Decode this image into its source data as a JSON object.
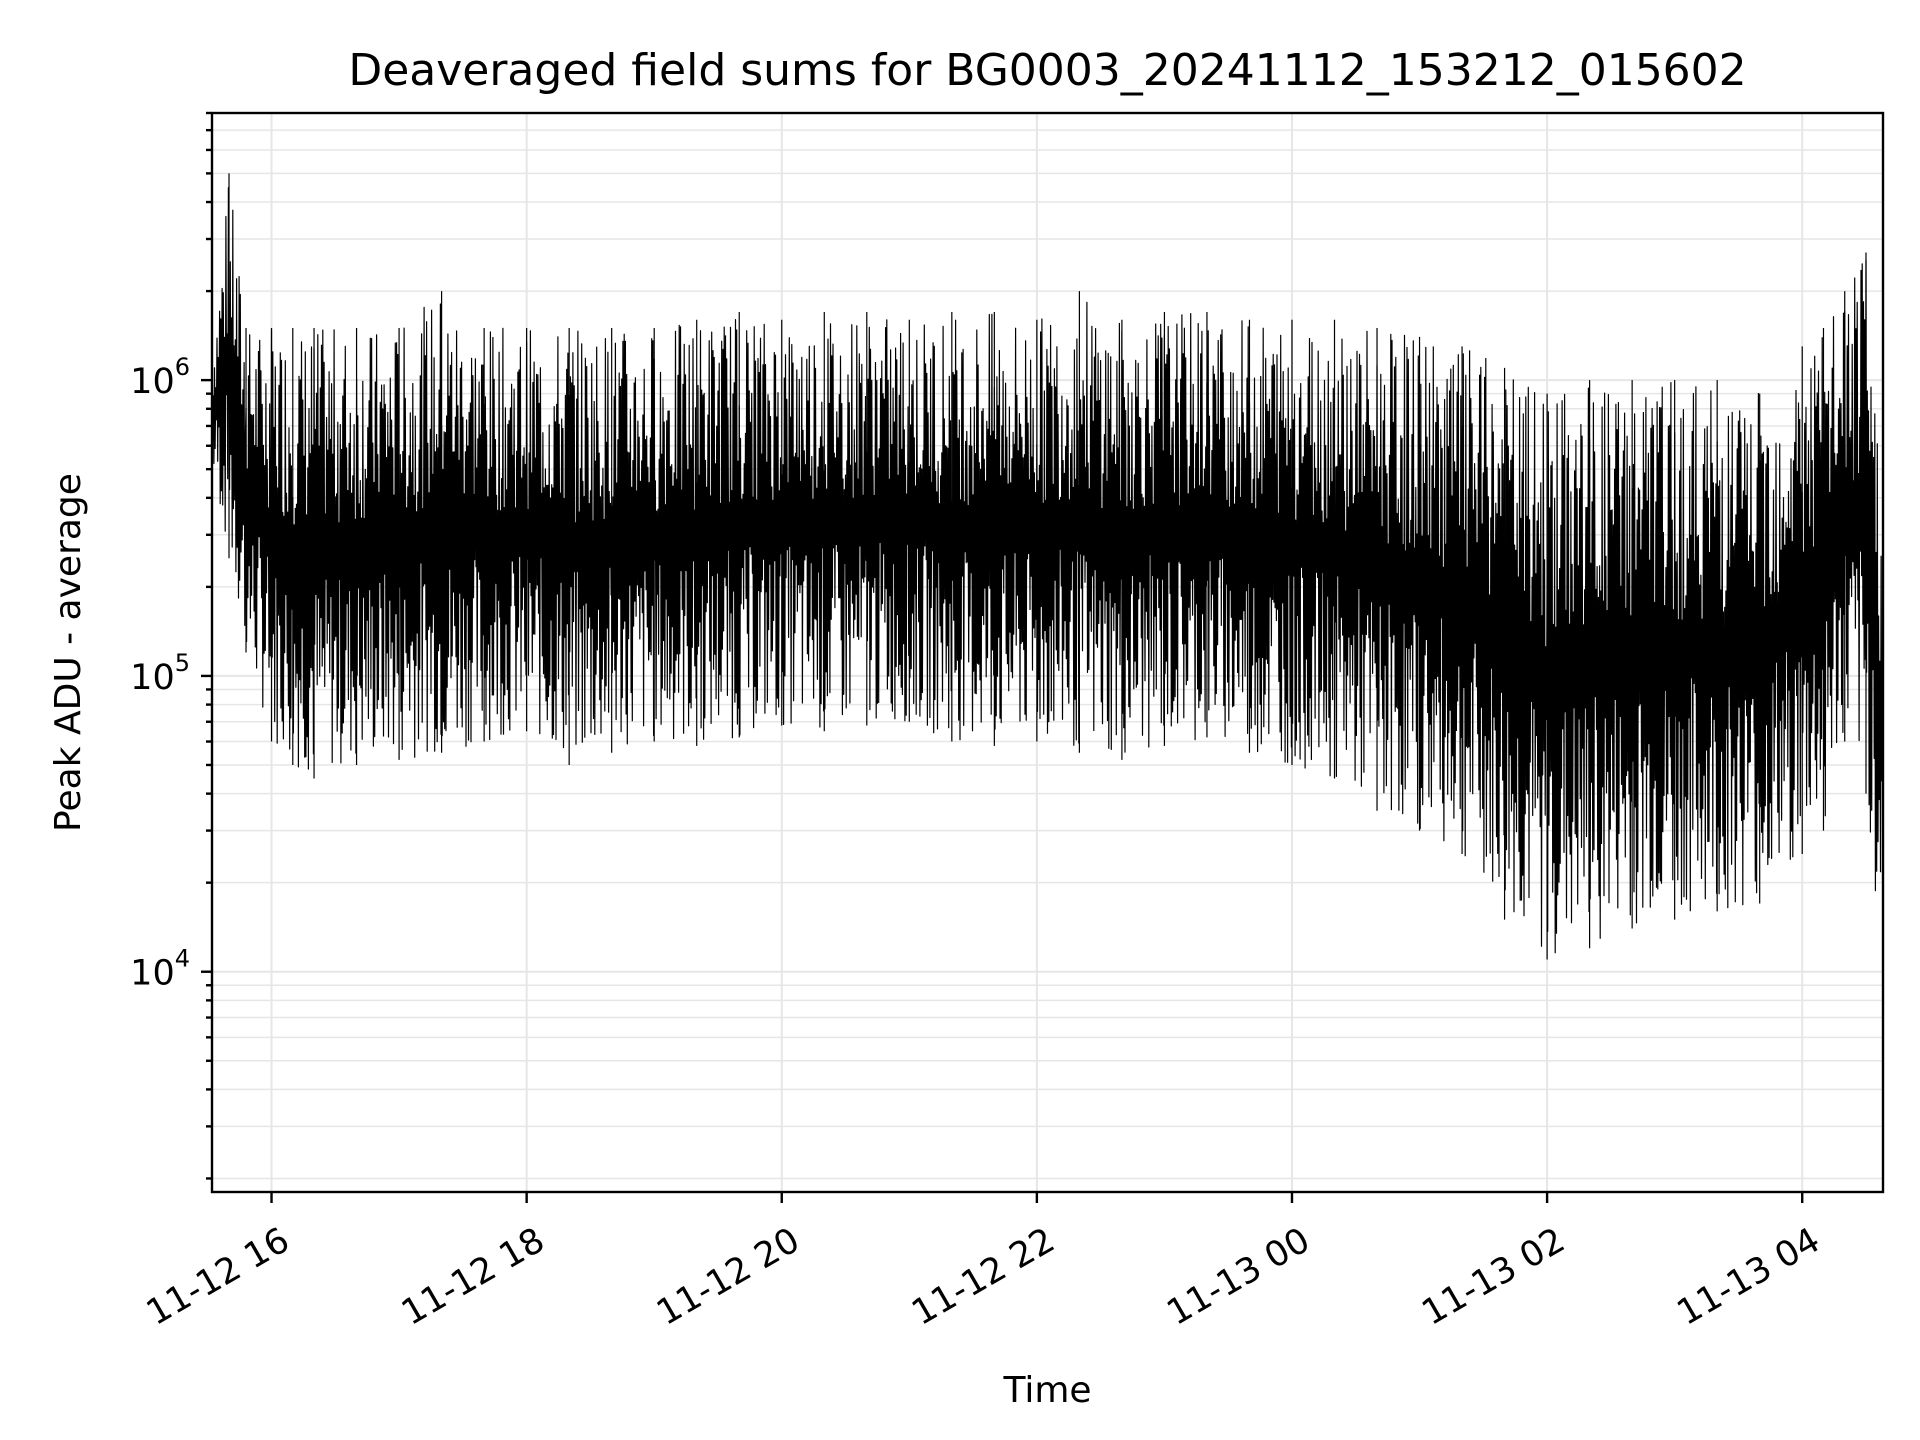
{
  "chart_data": {
    "type": "line",
    "title": "Deaveraged field sums for BG0003_20241112_153212_015602",
    "xlabel": "Time",
    "ylabel": "Peak ADU - average",
    "y_scale": "log",
    "ylim": [
      1800,
      8000000
    ],
    "xlim": [
      "2024-11-12 15:32",
      "2024-11-13 04:38"
    ],
    "grid": true,
    "legend": "none",
    "line_color": "#000000",
    "x_ticks": [
      {
        "value": "2024-11-12 16:00",
        "label": "11-12 16"
      },
      {
        "value": "2024-11-12 18:00",
        "label": "11-12 18"
      },
      {
        "value": "2024-11-12 20:00",
        "label": "11-12 20"
      },
      {
        "value": "2024-11-12 22:00",
        "label": "11-12 22"
      },
      {
        "value": "2024-11-13 00:00",
        "label": "11-13 00"
      },
      {
        "value": "2024-11-13 02:00",
        "label": "11-13 02"
      },
      {
        "value": "2024-11-13 04:00",
        "label": "11-13 04"
      }
    ],
    "y_ticks": [
      {
        "value": 10000,
        "base": "10",
        "exp": "4"
      },
      {
        "value": 100000,
        "base": "10",
        "exp": "5"
      },
      {
        "value": 1000000,
        "base": "10",
        "exp": "6"
      }
    ],
    "series": [
      {
        "x": [
          "2024-11-12 15:32",
          "2024-11-12 15:40",
          "2024-11-12 15:48",
          "2024-11-12 16:00",
          "2024-11-12 16:10",
          "2024-11-12 16:20",
          "2024-11-12 16:40",
          "2024-11-12 17:00",
          "2024-11-12 17:20",
          "2024-11-12 17:40",
          "2024-11-12 18:00",
          "2024-11-12 18:20",
          "2024-11-12 18:40",
          "2024-11-12 19:00",
          "2024-11-12 19:20",
          "2024-11-12 19:40",
          "2024-11-12 20:00",
          "2024-11-12 20:20",
          "2024-11-12 20:40",
          "2024-11-12 21:00",
          "2024-11-12 21:20",
          "2024-11-12 21:40",
          "2024-11-12 22:00",
          "2024-11-12 22:20",
          "2024-11-12 22:40",
          "2024-11-12 23:00",
          "2024-11-12 23:20",
          "2024-11-12 23:40",
          "2024-11-13 00:00",
          "2024-11-13 00:20",
          "2024-11-13 00:40",
          "2024-11-13 01:00",
          "2024-11-13 01:20",
          "2024-11-13 01:40",
          "2024-11-13 02:00",
          "2024-11-13 02:20",
          "2024-11-13 02:40",
          "2024-11-13 03:00",
          "2024-11-13 03:20",
          "2024-11-13 03:40",
          "2024-11-13 04:00",
          "2024-11-13 04:10",
          "2024-11-13 04:20",
          "2024-11-13 04:30",
          "2024-11-13 04:38"
        ],
        "min": [
          500000,
          250000,
          120000,
          60000,
          50000,
          45000,
          50000,
          52000,
          55000,
          60000,
          65000,
          50000,
          55000,
          60000,
          58000,
          62000,
          68000,
          65000,
          68000,
          70000,
          60000,
          58000,
          60000,
          55000,
          52000,
          58000,
          62000,
          55000,
          50000,
          45000,
          35000,
          30000,
          25000,
          15000,
          11000,
          12000,
          14000,
          15000,
          16000,
          17000,
          25000,
          30000,
          60000,
          40000,
          10000
        ],
        "max": [
          1200000,
          5000000,
          1500000,
          1500000,
          1500000,
          1500000,
          1500000,
          1500000,
          2000000,
          1500000,
          1500000,
          1500000,
          1500000,
          1500000,
          1600000,
          1700000,
          1600000,
          1700000,
          1700000,
          1600000,
          1700000,
          1700000,
          1600000,
          2000000,
          1600000,
          1700000,
          1700000,
          1600000,
          1600000,
          1600000,
          1500000,
          1400000,
          1300000,
          1100000,
          900000,
          1000000,
          1000000,
          1000000,
          1000000,
          900000,
          1300000,
          1500000,
          2000000,
          2700000,
          400000
        ]
      }
    ]
  }
}
